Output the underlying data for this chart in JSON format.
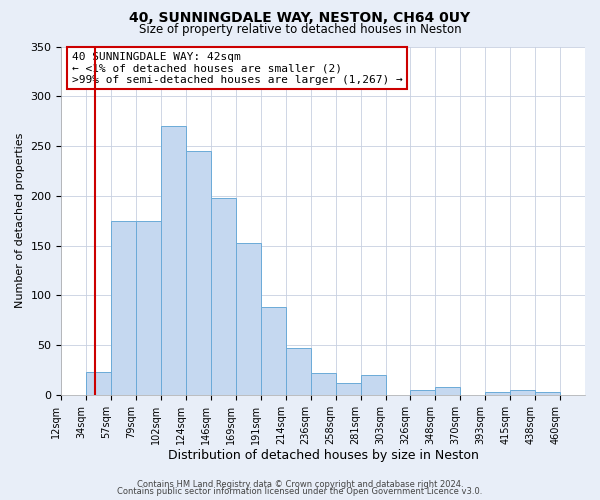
{
  "title": "40, SUNNINGDALE WAY, NESTON, CH64 0UY",
  "subtitle": "Size of property relative to detached houses in Neston",
  "xlabel": "Distribution of detached houses by size in Neston",
  "ylabel": "Number of detached properties",
  "bar_color": "#c5d8f0",
  "bar_edge_color": "#6baad8",
  "bin_labels": [
    "12sqm",
    "34sqm",
    "57sqm",
    "79sqm",
    "102sqm",
    "124sqm",
    "146sqm",
    "169sqm",
    "191sqm",
    "214sqm",
    "236sqm",
    "258sqm",
    "281sqm",
    "303sqm",
    "326sqm",
    "348sqm",
    "370sqm",
    "393sqm",
    "415sqm",
    "438sqm",
    "460sqm"
  ],
  "bar_heights": [
    0,
    23,
    175,
    175,
    270,
    245,
    198,
    153,
    88,
    47,
    22,
    12,
    20,
    0,
    5,
    8,
    0,
    3,
    5,
    3,
    0
  ],
  "ylim": [
    0,
    350
  ],
  "yticks": [
    0,
    50,
    100,
    150,
    200,
    250,
    300,
    350
  ],
  "vline_x": 42,
  "vline_color": "#cc0000",
  "annotation_text": "40 SUNNINGDALE WAY: 42sqm\n← <1% of detached houses are smaller (2)\n>99% of semi-detached houses are larger (1,267) →",
  "annotation_box_color": "#ffffff",
  "annotation_box_edge_color": "#cc0000",
  "footer1": "Contains HM Land Registry data © Crown copyright and database right 2024.",
  "footer2": "Contains public sector information licensed under the Open Government Licence v3.0.",
  "plot_bg_color": "#ffffff",
  "fig_bg_color": "#e8eef8",
  "grid_color": "#c8d0e0"
}
